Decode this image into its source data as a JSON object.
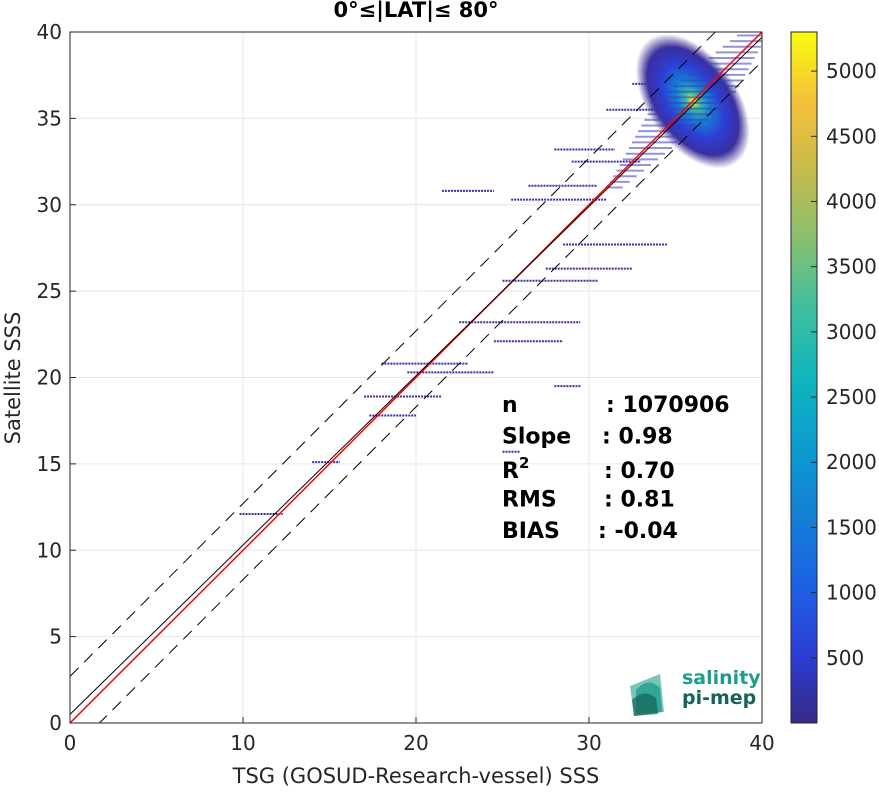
{
  "chart_data": {
    "type": "heatmap",
    "title": "0°≤|LAT|≤ 80°",
    "xlabel": "TSG (GOSUD-Research-vessel) SSS",
    "ylabel": "Satellite SSS",
    "xlim": [
      0,
      40
    ],
    "ylim": [
      0,
      40
    ],
    "xticks": [
      "0",
      "10",
      "20",
      "30",
      "40"
    ],
    "yticks": [
      "0",
      "5",
      "10",
      "15",
      "20",
      "25",
      "30",
      "35",
      "40"
    ],
    "grid": true,
    "colorbar": {
      "min": 0,
      "max": 5300,
      "ticks": [
        "500",
        "1000",
        "1500",
        "2000",
        "2500",
        "3000",
        "3500",
        "4000",
        "4500",
        "5000"
      ],
      "colormap": "parula"
    },
    "density_core": {
      "x_center": 36,
      "y_center": 36,
      "x_range": [
        33,
        38.2
      ],
      "y_range": [
        31,
        39.8
      ],
      "peak_count": 5200
    },
    "scattered_segments": [
      {
        "x": [
          9.8,
          12.3
        ],
        "y": 12.1
      },
      {
        "x": [
          14.0,
          15.6
        ],
        "y": 15.1
      },
      {
        "x": [
          17.3,
          20.0
        ],
        "y": 17.8
      },
      {
        "x": [
          17.0,
          21.5
        ],
        "y": 18.9
      },
      {
        "x": [
          18.0,
          23.0
        ],
        "y": 20.8
      },
      {
        "x": [
          19.5,
          24.5
        ],
        "y": 20.3
      },
      {
        "x": [
          24.5,
          28.5
        ],
        "y": 22.1
      },
      {
        "x": [
          22.5,
          29.5
        ],
        "y": 23.2
      },
      {
        "x": [
          25.0,
          30.5
        ],
        "y": 25.6
      },
      {
        "x": [
          27.5,
          32.5
        ],
        "y": 26.3
      },
      {
        "x": [
          28.5,
          34.5
        ],
        "y": 27.7
      },
      {
        "x": [
          25.5,
          31.0
        ],
        "y": 30.3
      },
      {
        "x": [
          26.5,
          30.5
        ],
        "y": 31.1
      },
      {
        "x": [
          21.5,
          24.5
        ],
        "y": 30.8
      },
      {
        "x": [
          29.0,
          33.0
        ],
        "y": 32.5
      },
      {
        "x": [
          28.0,
          31.5
        ],
        "y": 33.2
      },
      {
        "x": [
          31.0,
          34.5
        ],
        "y": 35.5
      },
      {
        "x": [
          32.5,
          35.0
        ],
        "y": 37.0
      },
      {
        "x": [
          25.0,
          26.0
        ],
        "y": 15.7
      },
      {
        "x": [
          28.0,
          29.5
        ],
        "y": 19.5
      }
    ],
    "lines": [
      {
        "name": "identity",
        "color": "#ff0000",
        "slope": 1,
        "intercept": 0
      },
      {
        "name": "fit",
        "color": "#000000",
        "slope": 0.98,
        "intercept": 0.5
      },
      {
        "name": "upper",
        "color": "#000000",
        "dashed": true,
        "slope": 1,
        "intercept": 2.7
      },
      {
        "name": "lower",
        "color": "#000000",
        "dashed": true,
        "slope": 1,
        "intercept": -1.7
      }
    ],
    "stats": [
      {
        "label": "n",
        "value": ": 1070906"
      },
      {
        "label": "Slope",
        "value": ": 0.98"
      },
      {
        "label": "R",
        "sup": "2",
        "value": ": 0.70"
      },
      {
        "label": "RMS",
        "value": ": 0.81"
      },
      {
        "label": "BIAS",
        "value": ": -0.04"
      }
    ]
  },
  "logo": {
    "line1": "salinity",
    "line2": "pi-mep"
  },
  "colors": {
    "identity_line": "#ff0000",
    "fit_line": "#000000",
    "logo_teal": "#1e9e8a",
    "logo_dark": "#17625a"
  }
}
